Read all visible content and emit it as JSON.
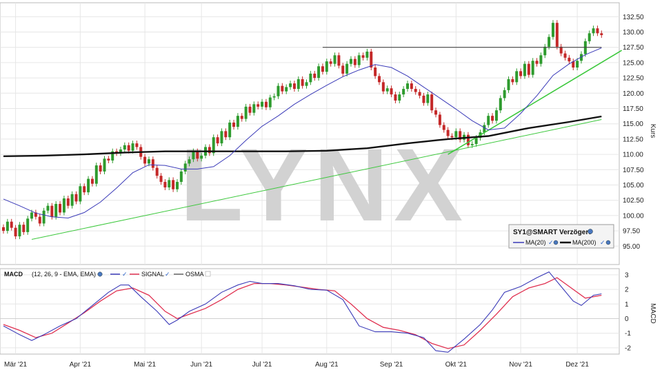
{
  "chart_data": {
    "type": "candlestick",
    "watermark": "LYNX",
    "x_ticks": [
      "Mär '21",
      "Apr '21",
      "Mai '21",
      "Jun '21",
      "Jul '21",
      "Aug '21",
      "Sep '21",
      "Okt '21",
      "Nov '21",
      "Dez '21"
    ],
    "price_panel": {
      "ylabel": "Kurs",
      "ylim": [
        93.5,
        133.5
      ],
      "y_ticks": [
        "95.00",
        "97.50",
        "100.00",
        "102.50",
        "105.00",
        "107.50",
        "110.00",
        "112.50",
        "115.00",
        "117.50",
        "120.00",
        "122.50",
        "125.00",
        "127.50",
        "130.00",
        "132.50"
      ],
      "legend": {
        "title": "SY1@SMART Verzögert",
        "items": [
          {
            "label": "MA(20)",
            "color": "#3a3ab8"
          },
          {
            "label": "MA(200)",
            "color": "#111111"
          }
        ]
      },
      "colors": {
        "up": "#2e9b2e",
        "down": "#c42828",
        "ma20": "#3a3ab8",
        "ma200": "#111111",
        "trendline": "#3cc83c",
        "resistance": "#444444"
      },
      "closes": [
        [
          0,
          97.5
        ],
        [
          1,
          99.0
        ],
        [
          2,
          98.0
        ],
        [
          3,
          96.6
        ],
        [
          4,
          98.5
        ],
        [
          5,
          97.3
        ],
        [
          6,
          99.5
        ],
        [
          7,
          100.5
        ],
        [
          8,
          99.8
        ],
        [
          9,
          98.7
        ],
        [
          10,
          100.8
        ],
        [
          11,
          101.6
        ],
        [
          12,
          99.8
        ],
        [
          13,
          101.9
        ],
        [
          14,
          100.5
        ],
        [
          15,
          102.8
        ],
        [
          16,
          101.6
        ],
        [
          17,
          103.5
        ],
        [
          18,
          102.3
        ],
        [
          19,
          104.8
        ],
        [
          20,
          103.8
        ],
        [
          21,
          106.0
        ],
        [
          22,
          105.2
        ],
        [
          23,
          108.2
        ],
        [
          24,
          107.2
        ],
        [
          25,
          109.3
        ],
        [
          26,
          109.0
        ],
        [
          27,
          110.5
        ],
        [
          28,
          110.2
        ],
        [
          29,
          110.8
        ],
        [
          30,
          111.5
        ],
        [
          31,
          110.6
        ],
        [
          32,
          111.8
        ],
        [
          33,
          111.2
        ],
        [
          34,
          109.6
        ],
        [
          35,
          108.5
        ],
        [
          36,
          109.2
        ],
        [
          37,
          107.8
        ],
        [
          38,
          106.5
        ],
        [
          39,
          105.5
        ],
        [
          40,
          104.6
        ],
        [
          41,
          105.8
        ],
        [
          42,
          104.3
        ],
        [
          43,
          105.5
        ],
        [
          44,
          107.2
        ],
        [
          45,
          108.5
        ],
        [
          46,
          109.2
        ],
        [
          47,
          110.5
        ],
        [
          48,
          109.3
        ],
        [
          49,
          109.8
        ],
        [
          50,
          111.2
        ],
        [
          51,
          110.2
        ],
        [
          52,
          112.8
        ],
        [
          53,
          111.8
        ],
        [
          54,
          113.8
        ],
        [
          55,
          112.8
        ],
        [
          56,
          115.2
        ],
        [
          57,
          114.5
        ],
        [
          58,
          116.3
        ],
        [
          59,
          115.8
        ],
        [
          60,
          117.8
        ],
        [
          61,
          116.8
        ],
        [
          62,
          118.2
        ],
        [
          63,
          117.8
        ],
        [
          64,
          118.6
        ],
        [
          65,
          117.7
        ],
        [
          66,
          119.3
        ],
        [
          67,
          119.5
        ],
        [
          68,
          121.2
        ],
        [
          69,
          120.3
        ],
        [
          70,
          121.0
        ],
        [
          71,
          121.6
        ],
        [
          72,
          120.7
        ],
        [
          73,
          122.3
        ],
        [
          74,
          121.2
        ],
        [
          75,
          121.8
        ],
        [
          76,
          123.2
        ],
        [
          77,
          122.5
        ],
        [
          78,
          124.4
        ],
        [
          79,
          123.5
        ],
        [
          80,
          125.2
        ],
        [
          81,
          124.8
        ],
        [
          82,
          126.2
        ],
        [
          83,
          124.5
        ],
        [
          84,
          123.2
        ],
        [
          85,
          124.8
        ],
        [
          86,
          125.6
        ],
        [
          87,
          124.6
        ],
        [
          88,
          126.2
        ],
        [
          89,
          125.8
        ],
        [
          90,
          126.8
        ],
        [
          91,
          124.2
        ],
        [
          92,
          122.8
        ],
        [
          93,
          121.8
        ],
        [
          94,
          120.3
        ],
        [
          95,
          120.8
        ],
        [
          96,
          119.8
        ],
        [
          97,
          118.8
        ],
        [
          98,
          119.8
        ],
        [
          99,
          120.7
        ],
        [
          100,
          121.6
        ],
        [
          101,
          120.7
        ],
        [
          102,
          120.2
        ],
        [
          103,
          119.6
        ],
        [
          104,
          118.4
        ],
        [
          105,
          119.8
        ],
        [
          106,
          117.2
        ],
        [
          107,
          116.5
        ],
        [
          108,
          114.8
        ],
        [
          109,
          114.0
        ],
        [
          110,
          113.0
        ],
        [
          111,
          112.8
        ],
        [
          112,
          113.8
        ],
        [
          113,
          112.4
        ],
        [
          114,
          113.2
        ],
        [
          115,
          111.5
        ],
        [
          116,
          111.7
        ],
        [
          117,
          112.7
        ],
        [
          118,
          113.6
        ],
        [
          119,
          114.8
        ],
        [
          120,
          116.3
        ],
        [
          121,
          115.5
        ],
        [
          122,
          117.2
        ],
        [
          123,
          119.2
        ],
        [
          124,
          120.5
        ],
        [
          125,
          122.3
        ],
        [
          126,
          121.8
        ],
        [
          127,
          123.6
        ],
        [
          128,
          122.8
        ],
        [
          129,
          124.8
        ],
        [
          130,
          123.0
        ],
        [
          131,
          125.3
        ],
        [
          132,
          124.8
        ],
        [
          133,
          126.2
        ],
        [
          134,
          127.6
        ],
        [
          135,
          129.2
        ],
        [
          136,
          131.5
        ],
        [
          137,
          127.6
        ],
        [
          138,
          126.5
        ],
        [
          139,
          125.8
        ],
        [
          140,
          125.2
        ],
        [
          141,
          124.2
        ],
        [
          142,
          125.3
        ],
        [
          143,
          126.4
        ],
        [
          144,
          128.5
        ],
        [
          145,
          129.8
        ],
        [
          146,
          130.6
        ],
        [
          147,
          129.8
        ],
        [
          148,
          129.5
        ]
      ],
      "ma20": [
        [
          0,
          102.7
        ],
        [
          4,
          101.6
        ],
        [
          8,
          100.4
        ],
        [
          12,
          99.8
        ],
        [
          16,
          99.6
        ],
        [
          20,
          100.5
        ],
        [
          24,
          102.2
        ],
        [
          28,
          104.5
        ],
        [
          32,
          107.0
        ],
        [
          36,
          108.3
        ],
        [
          40,
          108.2
        ],
        [
          44,
          107.6
        ],
        [
          48,
          107.6
        ],
        [
          52,
          108.0
        ],
        [
          56,
          109.8
        ],
        [
          60,
          112.3
        ],
        [
          64,
          114.6
        ],
        [
          68,
          116.3
        ],
        [
          72,
          118.2
        ],
        [
          76,
          119.8
        ],
        [
          80,
          121.3
        ],
        [
          84,
          122.7
        ],
        [
          88,
          123.8
        ],
        [
          92,
          124.7
        ],
        [
          96,
          124.2
        ],
        [
          100,
          122.8
        ],
        [
          104,
          121.0
        ],
        [
          108,
          119.2
        ],
        [
          112,
          117.4
        ],
        [
          116,
          115.5
        ],
        [
          120,
          114.0
        ],
        [
          124,
          114.3
        ],
        [
          128,
          116.7
        ],
        [
          132,
          119.6
        ],
        [
          136,
          122.9
        ],
        [
          140,
          124.8
        ],
        [
          144,
          126.3
        ],
        [
          148,
          127.4
        ]
      ],
      "ma200": [
        [
          0,
          109.7
        ],
        [
          10,
          109.8
        ],
        [
          20,
          110.0
        ],
        [
          30,
          110.3
        ],
        [
          40,
          110.5
        ],
        [
          50,
          110.5
        ],
        [
          60,
          110.5
        ],
        [
          70,
          110.5
        ],
        [
          80,
          110.6
        ],
        [
          90,
          111.0
        ],
        [
          100,
          111.8
        ],
        [
          110,
          112.5
        ],
        [
          120,
          113.0
        ],
        [
          130,
          114.3
        ],
        [
          140,
          115.3
        ],
        [
          148,
          116.2
        ]
      ],
      "resistance": [
        [
          79,
          127.5
        ],
        [
          148,
          127.5
        ]
      ],
      "trendlines": [
        [
          [
            7,
            96.1
          ],
          [
            148,
            115.7
          ]
        ],
        [
          [
            110,
            110.0
          ],
          [
            153,
            127.0
          ]
        ]
      ]
    },
    "macd_panel": {
      "legend": {
        "title": "MACD",
        "params": "(12, 26, 9 - EMA, EMA)",
        "items": [
          {
            "label": "SIGNAL",
            "color": "#e03050"
          },
          {
            "label": "OSMA",
            "color": "#666666"
          }
        ],
        "macd_color": "#3a3ab8"
      },
      "ylabel": "MACD",
      "ylim": [
        -2.6,
        3.6
      ],
      "y_ticks": [
        "-2",
        "-1",
        "0",
        "1",
        "2",
        "3"
      ],
      "macd": [
        [
          0,
          -0.5
        ],
        [
          4,
          -1.1
        ],
        [
          7,
          -1.5
        ],
        [
          10,
          -1.1
        ],
        [
          14,
          -0.5
        ],
        [
          18,
          0.0
        ],
        [
          22,
          0.9
        ],
        [
          26,
          1.8
        ],
        [
          29,
          2.3
        ],
        [
          31,
          2.3
        ],
        [
          34,
          1.5
        ],
        [
          38,
          0.5
        ],
        [
          41,
          -0.4
        ],
        [
          43,
          -0.1
        ],
        [
          46,
          0.5
        ],
        [
          50,
          1.0
        ],
        [
          54,
          1.8
        ],
        [
          58,
          2.3
        ],
        [
          61,
          2.55
        ],
        [
          64,
          2.4
        ],
        [
          68,
          2.4
        ],
        [
          72,
          2.25
        ],
        [
          76,
          2.0
        ],
        [
          80,
          1.95
        ],
        [
          84,
          1.3
        ],
        [
          88,
          -0.5
        ],
        [
          92,
          -0.9
        ],
        [
          96,
          -0.9
        ],
        [
          100,
          -1.0
        ],
        [
          104,
          -1.3
        ],
        [
          107,
          -2.2
        ],
        [
          110,
          -2.3
        ],
        [
          114,
          -1.4
        ],
        [
          118,
          -0.4
        ],
        [
          121,
          0.6
        ],
        [
          124,
          1.8
        ],
        [
          128,
          2.2
        ],
        [
          132,
          2.8
        ],
        [
          135,
          3.2
        ],
        [
          138,
          2.2
        ],
        [
          141,
          1.2
        ],
        [
          143,
          0.9
        ],
        [
          146,
          1.6
        ],
        [
          148,
          1.7
        ]
      ],
      "signal": [
        [
          0,
          -0.4
        ],
        [
          4,
          -0.8
        ],
        [
          8,
          -1.3
        ],
        [
          12,
          -1.0
        ],
        [
          16,
          -0.3
        ],
        [
          20,
          0.4
        ],
        [
          24,
          1.2
        ],
        [
          28,
          1.9
        ],
        [
          32,
          2.1
        ],
        [
          36,
          1.6
        ],
        [
          40,
          0.5
        ],
        [
          43,
          0.0
        ],
        [
          46,
          0.3
        ],
        [
          50,
          0.7
        ],
        [
          54,
          1.3
        ],
        [
          58,
          2.0
        ],
        [
          62,
          2.4
        ],
        [
          66,
          2.4
        ],
        [
          70,
          2.3
        ],
        [
          74,
          2.15
        ],
        [
          78,
          2.0
        ],
        [
          82,
          1.9
        ],
        [
          86,
          1.0
        ],
        [
          90,
          0.0
        ],
        [
          94,
          -0.6
        ],
        [
          98,
          -0.8
        ],
        [
          102,
          -1.1
        ],
        [
          106,
          -1.7
        ],
        [
          110,
          -2.05
        ],
        [
          114,
          -1.8
        ],
        [
          118,
          -0.8
        ],
        [
          122,
          0.3
        ],
        [
          126,
          1.5
        ],
        [
          130,
          2.1
        ],
        [
          134,
          2.4
        ],
        [
          137,
          2.8
        ],
        [
          140,
          2.2
        ],
        [
          144,
          1.4
        ],
        [
          148,
          1.6
        ]
      ]
    }
  }
}
